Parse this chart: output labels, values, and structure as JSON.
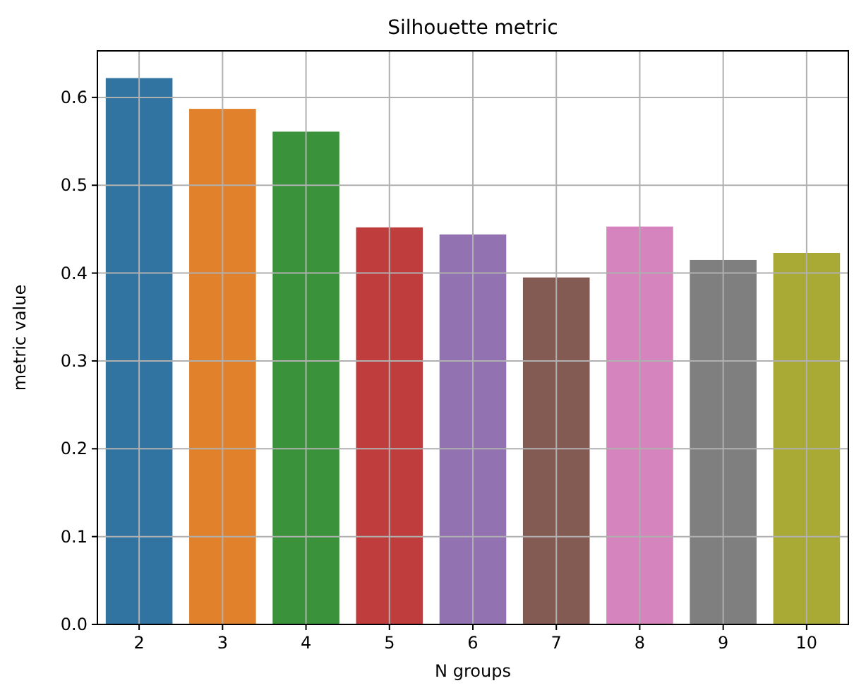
{
  "chart_data": {
    "type": "bar",
    "title": "Silhouette metric",
    "xlabel": "N groups",
    "ylabel": "metric value",
    "categories": [
      "2",
      "3",
      "4",
      "5",
      "6",
      "7",
      "8",
      "9",
      "10"
    ],
    "values": [
      0.622,
      0.587,
      0.561,
      0.452,
      0.444,
      0.395,
      0.453,
      0.415,
      0.423
    ],
    "colors": [
      "#3274a1",
      "#e1812c",
      "#3a923a",
      "#c03d3e",
      "#9372b2",
      "#845b53",
      "#d684bd",
      "#7f7f7f",
      "#a9aa35"
    ],
    "ylim": [
      0,
      0.653
    ],
    "yticks": [
      {
        "value": 0,
        "label": "0.0"
      },
      0.1,
      0.2,
      0.3,
      0.4,
      0.5,
      0.6
    ],
    "grid": true
  }
}
